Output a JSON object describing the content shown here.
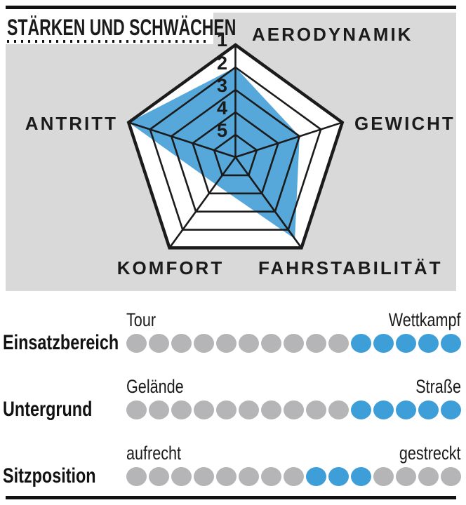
{
  "title": "STÄRKEN UND SCHWÄCHEN",
  "colors": {
    "panel_gray": "#d9d9d9",
    "radar_fill_blue": "#56a7da",
    "radar_area_white": "#ffffff",
    "line_ink": "#1b1b1b",
    "dot_gray": "#b5b5b7",
    "dot_blue": "#3e9ed8"
  },
  "chart_data": {
    "type": "radar",
    "axes": [
      "AERODYNAMIK",
      "GEWICHT",
      "FAHRSTABILITÄT",
      "KOMFORT",
      "ANTRITT"
    ],
    "values": [
      2,
      3,
      1.5,
      4.5,
      1
    ],
    "scale_ticks": [
      "1",
      "2",
      "3",
      "4",
      "5"
    ],
    "scale_range": [
      1,
      5
    ],
    "scale_direction": "1 = outer ring (stark), 5 = inner ring (schwach)",
    "rings": 5,
    "grid": "pentagon"
  },
  "ratings": [
    {
      "label": "Einsatzbereich",
      "left": "Tour",
      "right": "Wettkampf",
      "dots_total": 15,
      "dots": [
        0,
        0,
        0,
        0,
        0,
        0,
        0,
        0,
        0,
        0,
        1,
        1,
        1,
        1,
        1
      ],
      "active_range": "11-15"
    },
    {
      "label": "Untergrund",
      "left": "Gelände",
      "right": "Straße",
      "dots_total": 15,
      "dots": [
        0,
        0,
        0,
        0,
        0,
        0,
        0,
        0,
        0,
        0,
        1,
        1,
        1,
        1,
        1
      ],
      "active_range": "11-15"
    },
    {
      "label": "Sitzposition",
      "left": "aufrecht",
      "right": "gestreckt",
      "dots_total": 15,
      "dots": [
        0,
        0,
        0,
        0,
        0,
        0,
        0,
        0,
        1,
        1,
        1,
        0,
        0,
        0,
        0
      ],
      "active_range": "9-11"
    }
  ]
}
